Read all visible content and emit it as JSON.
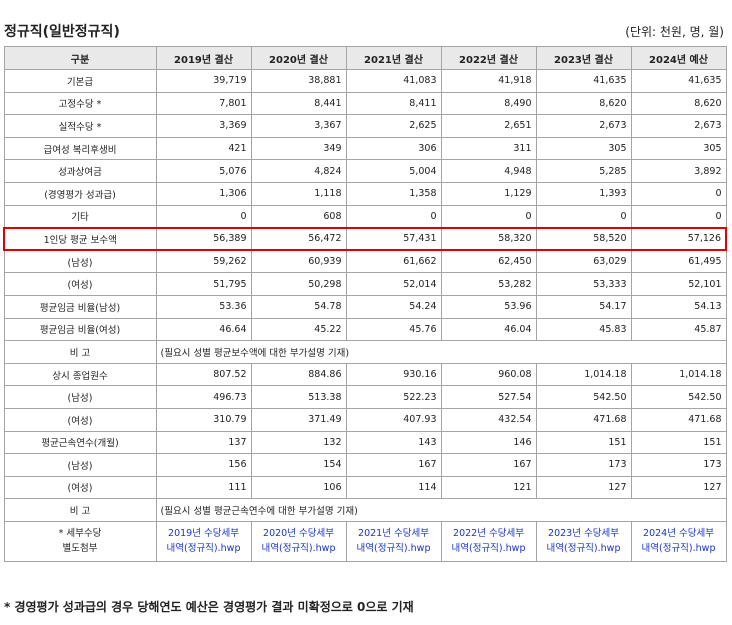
{
  "title": "정규직(일반정규직)",
  "unit": "(단위: 천원, 명, 월)",
  "header": [
    "구분",
    "2019년 결산",
    "2020년 결산",
    "2021년 결산",
    "2022년 결산",
    "2023년 결산",
    "2024년 예산"
  ],
  "rows": [
    {
      "label": "기본급",
      "values": [
        "39,719",
        "38,881",
        "41,083",
        "41,918",
        "41,635",
        "41,635"
      ]
    },
    {
      "label": "고정수당 *",
      "values": [
        "7,801",
        "8,441",
        "8,411",
        "8,490",
        "8,620",
        "8,620"
      ]
    },
    {
      "label": "실적수당 *",
      "values": [
        "3,369",
        "3,367",
        "2,625",
        "2,651",
        "2,673",
        "2,673"
      ]
    },
    {
      "label": "급여성 복리후생비",
      "values": [
        "421",
        "349",
        "306",
        "311",
        "305",
        "305"
      ]
    },
    {
      "label": "성과상여금",
      "values": [
        "5,076",
        "4,824",
        "5,004",
        "4,948",
        "5,285",
        "3,892"
      ]
    },
    {
      "label": "(경영평가 성과급)",
      "values": [
        "1,306",
        "1,118",
        "1,358",
        "1,129",
        "1,393",
        "0"
      ]
    },
    {
      "label": "기타",
      "values": [
        "0",
        "608",
        "0",
        "0",
        "0",
        "0"
      ]
    },
    {
      "label": "1인당 평균 보수액",
      "values": [
        "56,389",
        "56,472",
        "57,431",
        "58,320",
        "58,520",
        "57,126"
      ]
    },
    {
      "label": "(남성)",
      "values": [
        "59,262",
        "60,939",
        "61,662",
        "62,450",
        "63,029",
        "61,495"
      ]
    },
    {
      "label": "(여성)",
      "values": [
        "51,795",
        "50,298",
        "52,014",
        "53,282",
        "53,333",
        "52,101"
      ]
    },
    {
      "label": "평균임금 비율(남성)",
      "values": [
        "53.36",
        "54.78",
        "54.24",
        "53.96",
        "54.17",
        "54.13"
      ]
    },
    {
      "label": "평균임금 비율(여성)",
      "values": [
        "46.64",
        "45.22",
        "45.76",
        "46.04",
        "45.83",
        "45.87"
      ]
    },
    {
      "label": "비 고",
      "note": "(필요시 성별 평균보수액에 대한 부가설명 기재)"
    },
    {
      "label": "상시 종업원수",
      "values": [
        "807.52",
        "884.86",
        "930.16",
        "960.08",
        "1,014.18",
        "1,014.18"
      ]
    },
    {
      "label": "(남성)",
      "values": [
        "496.73",
        "513.38",
        "522.23",
        "527.54",
        "542.50",
        "542.50"
      ]
    },
    {
      "label": "(여성)",
      "values": [
        "310.79",
        "371.49",
        "407.93",
        "432.54",
        "471.68",
        "471.68"
      ]
    },
    {
      "label": "평균근속연수(개월)",
      "values": [
        "137",
        "132",
        "143",
        "146",
        "151",
        "151"
      ]
    },
    {
      "label": "(남성)",
      "values": [
        "156",
        "154",
        "167",
        "167",
        "173",
        "173"
      ]
    },
    {
      "label": "(여성)",
      "values": [
        "111",
        "106",
        "114",
        "121",
        "127",
        "127"
      ]
    },
    {
      "label": "비 고",
      "note": "(필요시 성별 평균근속연수에 대한 부가설명 기재)"
    }
  ],
  "attachments": {
    "label_line1": "* 세부수당",
    "label_line2": "별도첨부",
    "links": [
      {
        "line1": "2019년 수당세부",
        "line2": "내역(정규직).hwp"
      },
      {
        "line1": "2020년 수당세부",
        "line2": "내역(정규직).hwp"
      },
      {
        "line1": "2021년 수당세부",
        "line2": "내역(정규직).hwp"
      },
      {
        "line1": "2022년 수당세부",
        "line2": "내역(정규직).hwp"
      },
      {
        "line1": "2023년 수당세부",
        "line2": "내역(정규직).hwp"
      },
      {
        "line1": "2024년 수당세부",
        "line2": "내역(정규직).hwp"
      }
    ]
  },
  "highlight_row_label": "1인당 평균 보수액",
  "highlight_color": "#e00000",
  "link_color": "#1a33c8",
  "header_bg": "#e9e9e9",
  "footnote": "* 경영평가 성과급의 경우 당해연도 예산은 경영평가 결과 미확정으로 0으로 기재"
}
